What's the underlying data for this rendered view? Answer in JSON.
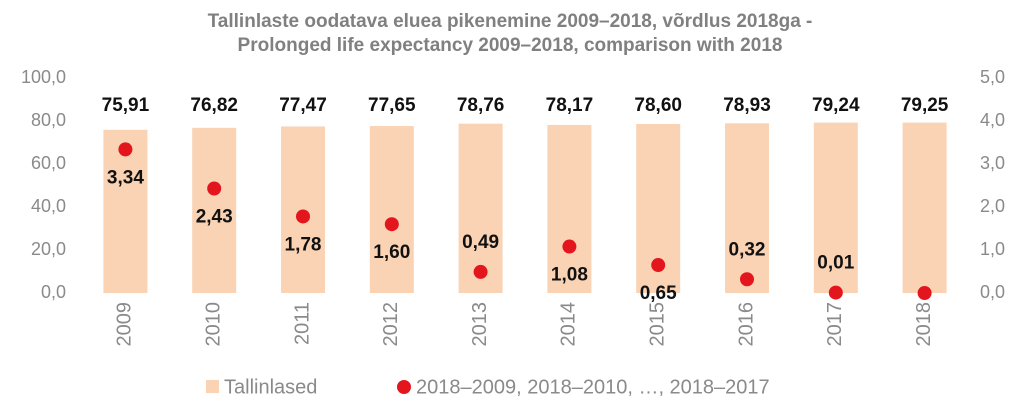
{
  "chart_data": {
    "type": "bar",
    "title": [
      "Tallinlaste oodatava eluea pikenemine 2009–2018, võrdlus 2018ga -",
      "Prolonged life expectancy 2009–2018, comparison with 2018"
    ],
    "categories": [
      "2009",
      "2010",
      "2011",
      "2012",
      "2013",
      "2014",
      "2015",
      "2016",
      "2017",
      "2018"
    ],
    "series": [
      {
        "name": "Tallinlased",
        "color": "#fad3b4",
        "values": [
          75.91,
          76.82,
          77.47,
          77.65,
          78.76,
          78.17,
          78.6,
          78.93,
          79.24,
          79.25
        ],
        "value_labels": [
          "75,91",
          "76,82",
          "77,47",
          "77,65",
          "78,76",
          "78,17",
          "78,60",
          "78,93",
          "79,24",
          "79,25"
        ]
      },
      {
        "name": "2018–2009, 2018–2010, …, 2018–2017",
        "type": "scatter",
        "axis": "y2",
        "color": "#e3161e",
        "values": [
          3.34,
          2.43,
          1.78,
          1.6,
          0.49,
          1.08,
          0.65,
          0.32,
          0.01,
          0
        ],
        "value_labels": [
          "3,34",
          "2,43",
          "1,78",
          "1,60",
          "0,49",
          "1,08",
          "0,65",
          "0,32",
          "0,01",
          null
        ]
      }
    ],
    "ylim": [
      0,
      100
    ],
    "yticks": [
      {
        "value": 0,
        "label": "0,0"
      },
      {
        "value": 20,
        "label": "20,0"
      },
      {
        "value": 40,
        "label": "40,0"
      },
      {
        "value": 60,
        "label": "60,0"
      },
      {
        "value": 80,
        "label": "80,0"
      },
      {
        "value": 100,
        "label": "100,0"
      }
    ],
    "y2lim": [
      0,
      5
    ],
    "y2ticks": [
      {
        "value": 0,
        "label": "0,0"
      },
      {
        "value": 1,
        "label": "1,0"
      },
      {
        "value": 2,
        "label": "2,0"
      },
      {
        "value": 3,
        "label": "3,0"
      },
      {
        "value": 4,
        "label": "4,0"
      },
      {
        "value": 5,
        "label": "5,0"
      }
    ],
    "legend": "bottom"
  }
}
